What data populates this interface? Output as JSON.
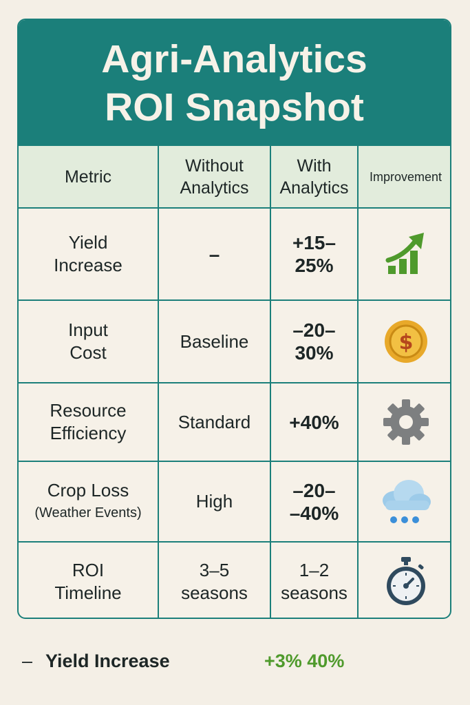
{
  "title": {
    "line1": "Agri-Analytics",
    "line2": "ROI Snapshot"
  },
  "columns": {
    "metric": "Metric",
    "without_l1": "Without",
    "without_l2": "Analytics",
    "with_l1": "With",
    "with_l2": "Analytics",
    "improvement": "Improvement"
  },
  "rows": [
    {
      "metric_l1": "Yield",
      "metric_l2": "Increase",
      "without": "–",
      "with_l1": "+15–",
      "with_l2": "25%",
      "icon": "growth-chart-icon"
    },
    {
      "metric_l1": "Input",
      "metric_l2": "Cost",
      "without": "Baseline",
      "with_l1": "–20–",
      "with_l2": "30%",
      "icon": "dollar-coin-icon"
    },
    {
      "metric_l1": "Resource",
      "metric_l2": "Efficiency",
      "without": "Standard",
      "with_l1": "+40%",
      "with_l2": "",
      "icon": "gear-icon"
    },
    {
      "metric_l1": "Crop Loss",
      "metric_l2": "(Weather Events)",
      "without": "High",
      "with_l1": "–20–",
      "with_l2": "–40%",
      "icon": "rain-cloud-icon"
    },
    {
      "metric_l1": "ROI",
      "metric_l2": "Timeline",
      "without_l1": "3–5",
      "without_l2": "seasons",
      "with_l1": "1–2",
      "with_l2": "seasons",
      "icon": "stopwatch-icon"
    }
  ],
  "footer": {
    "dash": "–",
    "label": "Yield Increase",
    "value": "+3% 40%"
  },
  "colors": {
    "teal": "#1b7f7a",
    "header_bg": "#e2ecdc",
    "page_bg": "#f4efe6",
    "green": "#4f9a2c",
    "gold": "#e8a92a",
    "gray": "#7d7f80",
    "blue": "#3b8fd9"
  }
}
